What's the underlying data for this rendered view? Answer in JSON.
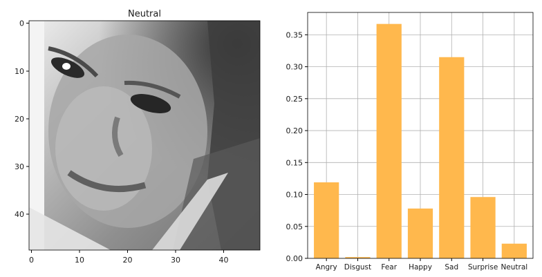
{
  "left_panel": {
    "title": "Neutral",
    "x_ticks": [
      "0",
      "10",
      "20",
      "30",
      "40"
    ],
    "y_ticks": [
      "0",
      "10",
      "20",
      "30",
      "40"
    ],
    "image_size": [
      48,
      48
    ],
    "colormap": "gray"
  },
  "chart_data": {
    "type": "bar",
    "categories": [
      "Angry",
      "Disgust",
      "Fear",
      "Happy",
      "Sad",
      "Surprise",
      "Neutral"
    ],
    "values": [
      0.119,
      0.002,
      0.367,
      0.078,
      0.315,
      0.096,
      0.023
    ],
    "title": "",
    "xlabel": "",
    "ylabel": "",
    "ylim": [
      0,
      0.385
    ],
    "y_ticks": [
      "0.00",
      "0.05",
      "0.10",
      "0.15",
      "0.20",
      "0.25",
      "0.30",
      "0.35"
    ],
    "grid": true,
    "bar_color": "#ffb84d"
  }
}
